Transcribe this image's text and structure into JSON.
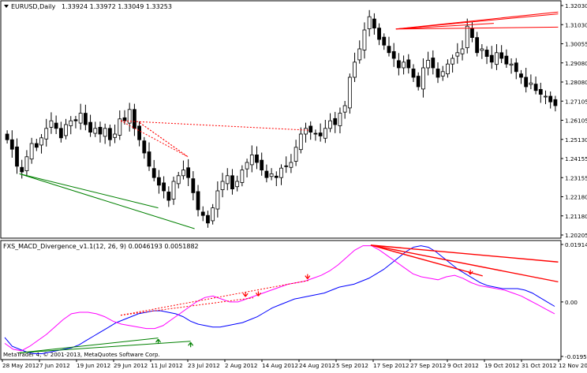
{
  "header": {
    "symbol": "EURUSD,Daily",
    "ohlc": "1.33924 1.33972 1.33049 1.33253"
  },
  "subwindow": {
    "indicator_label": "FXS_MACD_Divergence_v1.1(12, 26, 9) 0.0046193 0.0051882"
  },
  "footer": {
    "copyright": "MetaTrader 4, © 2001-2013, MetaQuotes Software Corp."
  },
  "colors": {
    "bull_candle": "#ffffff",
    "bear_candle": "#000000",
    "bear_divergence": "#ff0000",
    "bull_divergence": "#008000",
    "macd_line": "#0000ff",
    "signal_line": "#ff00ff"
  },
  "chart_data": [
    {
      "type": "candlestick",
      "title": "EURUSD,Daily",
      "ylim": [
        1.2,
        1.325
      ],
      "y_ticks": [
        "1.32030",
        "1.31030",
        "1.30055",
        "1.29080",
        "1.28080",
        "1.27105",
        "1.26105",
        "1.25130",
        "1.24155",
        "1.23155",
        "1.22180",
        "1.21180",
        "1.20205"
      ],
      "x_ticks": [
        "28 May 2012",
        "7 Jun 2012",
        "19 Jun 2012",
        "29 Jun 2012",
        "11 Jul 2012",
        "23 Jul 2012",
        "2 Aug 2012",
        "14 Aug 2012",
        "24 Aug 2012",
        "5 Sep 2012",
        "17 Sep 2012",
        "27 Sep 2012",
        "9 Oct 2012",
        "19 Oct 2012",
        "31 Oct 2012",
        "12 Nov 20"
      ],
      "close_path": [
        1.252,
        1.247,
        1.238,
        1.235,
        1.243,
        1.25,
        1.248,
        1.253,
        1.258,
        1.262,
        1.258,
        1.253,
        1.26,
        1.262,
        1.262,
        1.266,
        1.26,
        1.256,
        1.258,
        1.255,
        1.258,
        1.252,
        1.255,
        1.263,
        1.262,
        1.268,
        1.258,
        1.252,
        1.245,
        1.238,
        1.232,
        1.228,
        1.225,
        1.22,
        1.23,
        1.233,
        1.236,
        1.232,
        1.224,
        1.215,
        1.212,
        1.208,
        1.216,
        1.225,
        1.23,
        1.233,
        1.226,
        1.23,
        1.236,
        1.24,
        1.244,
        1.24,
        1.236,
        1.232,
        1.234,
        1.232,
        1.237,
        1.238,
        1.24,
        1.248,
        1.255,
        1.258,
        1.256,
        1.255,
        1.254,
        1.258,
        1.262,
        1.26,
        1.266,
        1.27,
        1.285,
        1.293,
        1.3,
        1.31,
        1.317,
        1.311,
        1.305,
        1.302,
        1.298,
        1.295,
        1.29,
        1.293,
        1.29,
        1.285,
        1.28,
        1.29,
        1.294,
        1.29,
        1.285,
        1.288,
        1.292,
        1.295,
        1.298,
        1.3,
        1.312,
        1.306,
        1.298,
        1.3,
        1.296,
        1.293,
        1.298,
        1.295,
        1.292,
        1.292,
        1.288,
        1.285,
        1.28,
        1.282,
        1.278,
        1.276,
        1.275,
        1.272,
        1.27
      ],
      "bearish_divergence_lines": [
        {
          "x": [
            0.247,
            0.333
          ],
          "y": [
            1.261,
            1.243
          ]
        },
        {
          "x": [
            0.247,
            0.333
          ],
          "y": [
            1.261,
            1.243
          ]
        },
        {
          "x": [
            0.213,
            0.333
          ],
          "y": [
            1.262,
            1.243
          ]
        },
        {
          "x": [
            0.213,
            0.55
          ],
          "y": [
            1.262,
            1.257
          ]
        },
        {
          "x": [
            0.705,
            0.995
          ],
          "y": [
            1.3105,
            1.3195
          ]
        },
        {
          "x": [
            0.705,
            0.995
          ],
          "y": [
            1.3105,
            1.3185
          ]
        },
        {
          "x": [
            0.705,
            0.995
          ],
          "y": [
            1.3105,
            1.3115
          ]
        },
        {
          "x": [
            0.705,
            0.88
          ],
          "y": [
            1.3105,
            1.3135
          ]
        }
      ],
      "bullish_divergence_lines": [
        {
          "x": [
            0.032,
            0.28
          ],
          "y": [
            1.234,
            1.216
          ]
        },
        {
          "x": [
            0.032,
            0.345
          ],
          "y": [
            1.234,
            1.205
          ]
        }
      ]
    },
    {
      "type": "line",
      "title": "FXS_MACD_Divergence_v1.1(12, 26, 9) 0.0046193 0.0051882",
      "ylim": [
        -0.0195,
        0.0205
      ],
      "y_ticks": [
        "0.019143",
        "0.00",
        "-0.019504"
      ],
      "series": [
        {
          "values": [
            -0.012,
            -0.015,
            -0.016,
            -0.017,
            -0.0175,
            -0.0175,
            -0.017,
            -0.0165,
            -0.016,
            -0.0155,
            -0.0145,
            -0.013,
            -0.0115,
            -0.01,
            -0.0085,
            -0.007,
            -0.006,
            -0.005,
            -0.004,
            -0.0035,
            -0.003,
            -0.003,
            -0.0035,
            -0.004,
            -0.005,
            -0.0065,
            -0.0075,
            -0.008,
            -0.0085,
            -0.0085,
            -0.008,
            -0.0075,
            -0.007,
            -0.006,
            -0.005,
            -0.0035,
            -0.002,
            -0.001,
            0.0,
            0.001,
            0.0015,
            0.002,
            0.0025,
            0.003,
            0.004,
            0.005,
            0.0055,
            0.006,
            0.007,
            0.008,
            0.0095,
            0.011,
            0.013,
            0.015,
            0.017,
            0.0185,
            0.019,
            0.0185,
            0.017,
            0.015,
            0.013,
            0.011,
            0.0095,
            0.008,
            0.0065,
            0.0055,
            0.005,
            0.0045,
            0.0045,
            0.0045,
            0.004,
            0.003,
            0.0015,
            0.0,
            -0.0015
          ]
        },
        {
          "values": [
            -0.014,
            -0.016,
            -0.0165,
            -0.015,
            -0.013,
            -0.011,
            -0.0085,
            -0.006,
            -0.004,
            -0.0035,
            -0.0035,
            -0.004,
            -0.005,
            -0.0065,
            -0.0075,
            -0.008,
            -0.0085,
            -0.009,
            -0.009,
            -0.008,
            -0.006,
            -0.004,
            -0.002,
            0.0,
            0.0015,
            0.002,
            0.001,
            0.0,
            0.0,
            0.001,
            0.002,
            0.003,
            0.004,
            0.005,
            0.006,
            0.0065,
            0.007,
            0.008,
            0.009,
            0.0105,
            0.0125,
            0.015,
            0.0175,
            0.019,
            0.019,
            0.0175,
            0.0155,
            0.0135,
            0.0115,
            0.0095,
            0.0085,
            0.008,
            0.0075,
            0.0085,
            0.009,
            0.008,
            0.0065,
            0.0055,
            0.005,
            0.0045,
            0.004,
            0.003,
            0.002,
            0.0005,
            -0.001,
            -0.0025,
            -0.004
          ]
        }
      ],
      "bearish_divergence_lines": [
        {
          "x": [
            0.213,
            0.45
          ],
          "y": [
            -0.0045,
            0.0014
          ]
        },
        {
          "x": [
            0.213,
            0.55
          ],
          "y": [
            -0.0045,
            0.0073
          ]
        },
        {
          "x": [
            0.66,
            0.995
          ],
          "y": [
            0.0192,
            0.0135
          ]
        },
        {
          "x": [
            0.66,
            0.995
          ],
          "y": [
            0.0192,
            0.0068
          ]
        },
        {
          "x": [
            0.66,
            0.86
          ],
          "y": [
            0.0192,
            0.0088
          ]
        }
      ],
      "bullish_divergence_lines": [
        {
          "x": [
            0.032,
            0.28
          ],
          "y": [
            -0.0172,
            -0.0122
          ]
        },
        {
          "x": [
            0.032,
            0.338
          ],
          "y": [
            -0.0172,
            -0.0133
          ]
        }
      ],
      "bearish_arrows": [
        {
          "x": 0.436,
          "y": 0.0018
        },
        {
          "x": 0.459,
          "y": 0.002
        },
        {
          "x": 0.547,
          "y": 0.0078
        },
        {
          "x": 0.838,
          "y": 0.0093
        }
      ],
      "bullish_arrows": [
        {
          "x": 0.28,
          "y": -0.0126
        },
        {
          "x": 0.338,
          "y": -0.0137
        }
      ]
    }
  ]
}
